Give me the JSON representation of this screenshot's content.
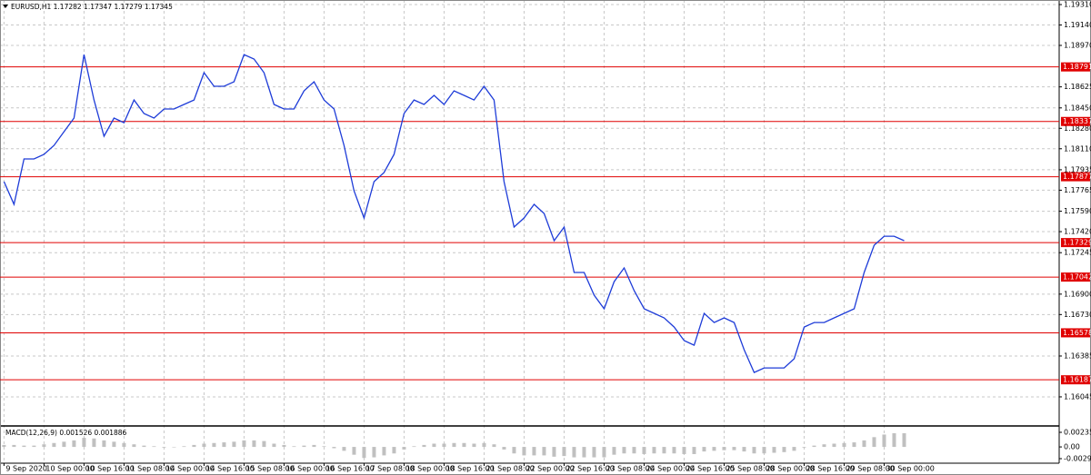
{
  "chart_data": {
    "type": "line",
    "title": "EURUSD,H1  1.17282 1.17347 1.17279 1.17345",
    "x": [
      0,
      1,
      2,
      3,
      4,
      5,
      6,
      7,
      8,
      9,
      10,
      11,
      12,
      13,
      14,
      15,
      16,
      17,
      18,
      19,
      20,
      21,
      22,
      23,
      24,
      25,
      26,
      27,
      28,
      29,
      30,
      31,
      32,
      33,
      34,
      35,
      36,
      37,
      38,
      39,
      40,
      41,
      42,
      43,
      44,
      45,
      46,
      47,
      48,
      49,
      50,
      51,
      52,
      53,
      54,
      55,
      56,
      57,
      58,
      59,
      60,
      61,
      62,
      63,
      64,
      65,
      66,
      67,
      68,
      69,
      70,
      71,
      72,
      73,
      74,
      75,
      76,
      77,
      78,
      79,
      80,
      81,
      82,
      83,
      84,
      85,
      86,
      87,
      88,
      89,
      90
    ],
    "series": [
      {
        "color": "#1e3cd8",
        "values": [
          1.17836,
          1.17647,
          1.18025,
          1.18025,
          1.18063,
          1.18138,
          1.18252,
          1.18365,
          1.18894,
          1.18516,
          1.18214,
          1.18365,
          1.18327,
          1.18516,
          1.18403,
          1.18365,
          1.18441,
          1.18441,
          1.18479,
          1.18516,
          1.18743,
          1.1863,
          1.1863,
          1.18668,
          1.18894,
          1.18857,
          1.18743,
          1.18479,
          1.18441,
          1.18441,
          1.18592,
          1.18668,
          1.18516,
          1.18441,
          1.18138,
          1.1776,
          1.17534,
          1.17836,
          1.17912,
          1.18063,
          1.18403,
          1.18516,
          1.18479,
          1.18554,
          1.18479,
          1.18592,
          1.18554,
          1.18516,
          1.1863,
          1.18516,
          1.17836,
          1.17458,
          1.17534,
          1.17647,
          1.17571,
          1.17345,
          1.17458,
          1.1708,
          1.1708,
          1.16891,
          1.16778,
          1.17004,
          1.17118,
          1.16929,
          1.16778,
          1.1674,
          1.16702,
          1.16626,
          1.16513,
          1.16475,
          1.1674,
          1.16664,
          1.16702,
          1.16664,
          1.16437,
          1.16248,
          1.16286,
          1.16286,
          1.16286,
          1.16362,
          1.16626,
          1.16664,
          1.16664,
          1.16702,
          1.1674,
          1.16778,
          1.1708,
          1.17307,
          1.17382,
          1.17382,
          1.17345
        ]
      }
    ],
    "xlim": [
      -0.4,
      105.5
    ],
    "ylim": [
      1.16022,
      1.19348
    ],
    "xticks": [
      {
        "value": 0,
        "label": "9 Sep 2020"
      },
      {
        "value": 4,
        "label": "10 Sep 00:00"
      },
      {
        "value": 8,
        "label": "10 Sep 16:00"
      },
      {
        "value": 12,
        "label": "11 Sep 08:00"
      },
      {
        "value": 16,
        "label": "14 Sep 00:00"
      },
      {
        "value": 20,
        "label": "14 Sep 16:00"
      },
      {
        "value": 24,
        "label": "15 Sep 08:00"
      },
      {
        "value": 28,
        "label": "16 Sep 00:00"
      },
      {
        "value": 32,
        "label": "16 Sep 16:00"
      },
      {
        "value": 36,
        "label": "17 Sep 08:00"
      },
      {
        "value": 40,
        "label": "18 Sep 00:00"
      },
      {
        "value": 44,
        "label": "18 Sep 16:00"
      },
      {
        "value": 48,
        "label": "21 Sep 08:00"
      },
      {
        "value": 52,
        "label": "22 Sep 00:00"
      },
      {
        "value": 56,
        "label": "22 Sep 16:00"
      },
      {
        "value": 60,
        "label": "23 Sep 08:00"
      },
      {
        "value": 64,
        "label": "24 Sep 00:00"
      },
      {
        "value": 68,
        "label": "24 Sep 16:00"
      },
      {
        "value": 72,
        "label": "25 Sep 08:00"
      },
      {
        "value": 76,
        "label": "28 Sep 00:00"
      },
      {
        "value": 80,
        "label": "28 Sep 16:00"
      },
      {
        "value": 84,
        "label": "29 Sep 08:00"
      },
      {
        "value": 88,
        "label": "30 Sep 00:00"
      }
    ],
    "yticks": [
      {
        "value": 1.1931,
        "label": "1.19310"
      },
      {
        "value": 1.1914,
        "label": "1.19140"
      },
      {
        "value": 1.1897,
        "label": "1.18970"
      },
      1.18625,
      {
        "value": 1.1845,
        "label": "1.18450"
      },
      {
        "value": 1.1828,
        "label": "1.18280"
      },
      {
        "value": 1.1811,
        "label": "1.18110"
      },
      1.17935,
      1.17765,
      {
        "value": 1.1759,
        "label": "1.17590"
      },
      {
        "value": 1.1742,
        "label": "1.17420"
      },
      1.17245,
      {
        "value": 1.169,
        "label": "1.16900"
      },
      {
        "value": 1.1673,
        "label": "1.16730"
      },
      1.16385,
      1.16045
    ],
    "grid": true,
    "levels": {
      "color": "#e00000",
      "values": [
        1.18791,
        1.18337,
        1.17877,
        1.17329,
        1.17042,
        1.16578,
        1.16187
      ]
    },
    "macd": {
      "label": "MACD(12,26,9) 0.001526 0.001886",
      "color": "#c0c0c0",
      "ylim": [
        -0.0025,
        0.0028
      ],
      "yticks": [
        0.002352,
        {
          "value": 0,
          "label": "0.00"
        },
        -0.002999
      ],
      "values": [
        0.0003,
        0.0003,
        0.0002,
        0.0002,
        0.0004,
        0.0006,
        0.0008,
        0.001,
        0.0014,
        0.0013,
        0.001,
        0.0008,
        0.0006,
        0.0004,
        0.0002,
        0.0001,
        -0.0001,
        0,
        0.0001,
        0.0003,
        0.0005,
        0.0006,
        0.0007,
        0.0008,
        0.001,
        0.001,
        0.0009,
        0.0005,
        0.0003,
        0.0001,
        0.0002,
        0.0003,
        0.0001,
        -0.0002,
        -0.0006,
        -0.0012,
        -0.0017,
        -0.0016,
        -0.0013,
        -0.001,
        -0.0004,
        0.0001,
        0.0003,
        0.0005,
        0.0005,
        0.0006,
        0.0006,
        0.0005,
        0.0006,
        0.0004,
        -0.0004,
        -0.001,
        -0.0013,
        -0.0013,
        -0.0013,
        -0.0015,
        -0.0014,
        -0.0016,
        -0.0016,
        -0.0016,
        -0.0016,
        -0.0012,
        -0.001,
        -0.001,
        -0.0011,
        -0.001,
        -0.001,
        -0.001,
        -0.0011,
        -0.0011,
        -0.0007,
        -0.0006,
        -0.0005,
        -0.0005,
        -0.0007,
        -0.001,
        -0.001,
        -0.0009,
        -0.0008,
        -0.0006,
        -0.0001,
        0.0002,
        0.0004,
        0.0005,
        0.0006,
        0.0007,
        0.001,
        0.0015,
        0.0019,
        0.0021,
        0.0021
      ]
    }
  }
}
